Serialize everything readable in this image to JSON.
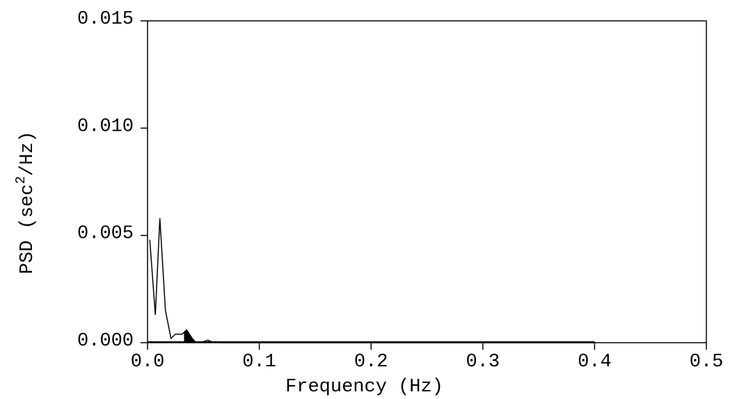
{
  "chart_data": {
    "type": "line",
    "title": "",
    "xlabel": "Frequency (Hz)",
    "ylabel": "PSD (sec²/Hz)",
    "ylabel_parts": {
      "pre": "PSD (sec",
      "sup": "2",
      "post": "/Hz)"
    },
    "xlim": [
      0.0,
      0.5
    ],
    "ylim": [
      0.0,
      0.015
    ],
    "x_ticks": [
      0.0,
      0.1,
      0.2,
      0.3,
      0.4,
      0.5
    ],
    "x_tick_labels": [
      "0.0",
      "0.1",
      "0.2",
      "0.3",
      "0.4",
      "0.5"
    ],
    "y_ticks": [
      0.0,
      0.005,
      0.01,
      0.015
    ],
    "y_tick_labels": [
      "0.000",
      "0.005",
      "0.010",
      "0.015"
    ],
    "grid": false,
    "series": [
      {
        "x": [
          0.002,
          0.007,
          0.011,
          0.016,
          0.021,
          0.025,
          0.028,
          0.031,
          0.035,
          0.04,
          0.043,
          0.047,
          0.05,
          0.054,
          0.058,
          0.065,
          0.08,
          0.1,
          0.15,
          0.2,
          0.25,
          0.3,
          0.35,
          0.4
        ],
        "y": [
          0.0048,
          0.0013,
          0.0058,
          0.0015,
          0.0002,
          0.0004,
          0.0004,
          0.0004,
          0.0006,
          0.0002,
          2e-05,
          3e-05,
          5e-05,
          0.00012,
          3e-05,
          0.0,
          0.0,
          0.0,
          0.0,
          0.0,
          0.0,
          0.0,
          0.0,
          0.0
        ],
        "color": "#000000"
      }
    ],
    "filled_band": {
      "range": [
        0.033,
        0.043
      ],
      "color": "#000000"
    },
    "baseline_band": {
      "x": [
        0.0,
        0.4
      ],
      "color": "#000000"
    }
  }
}
